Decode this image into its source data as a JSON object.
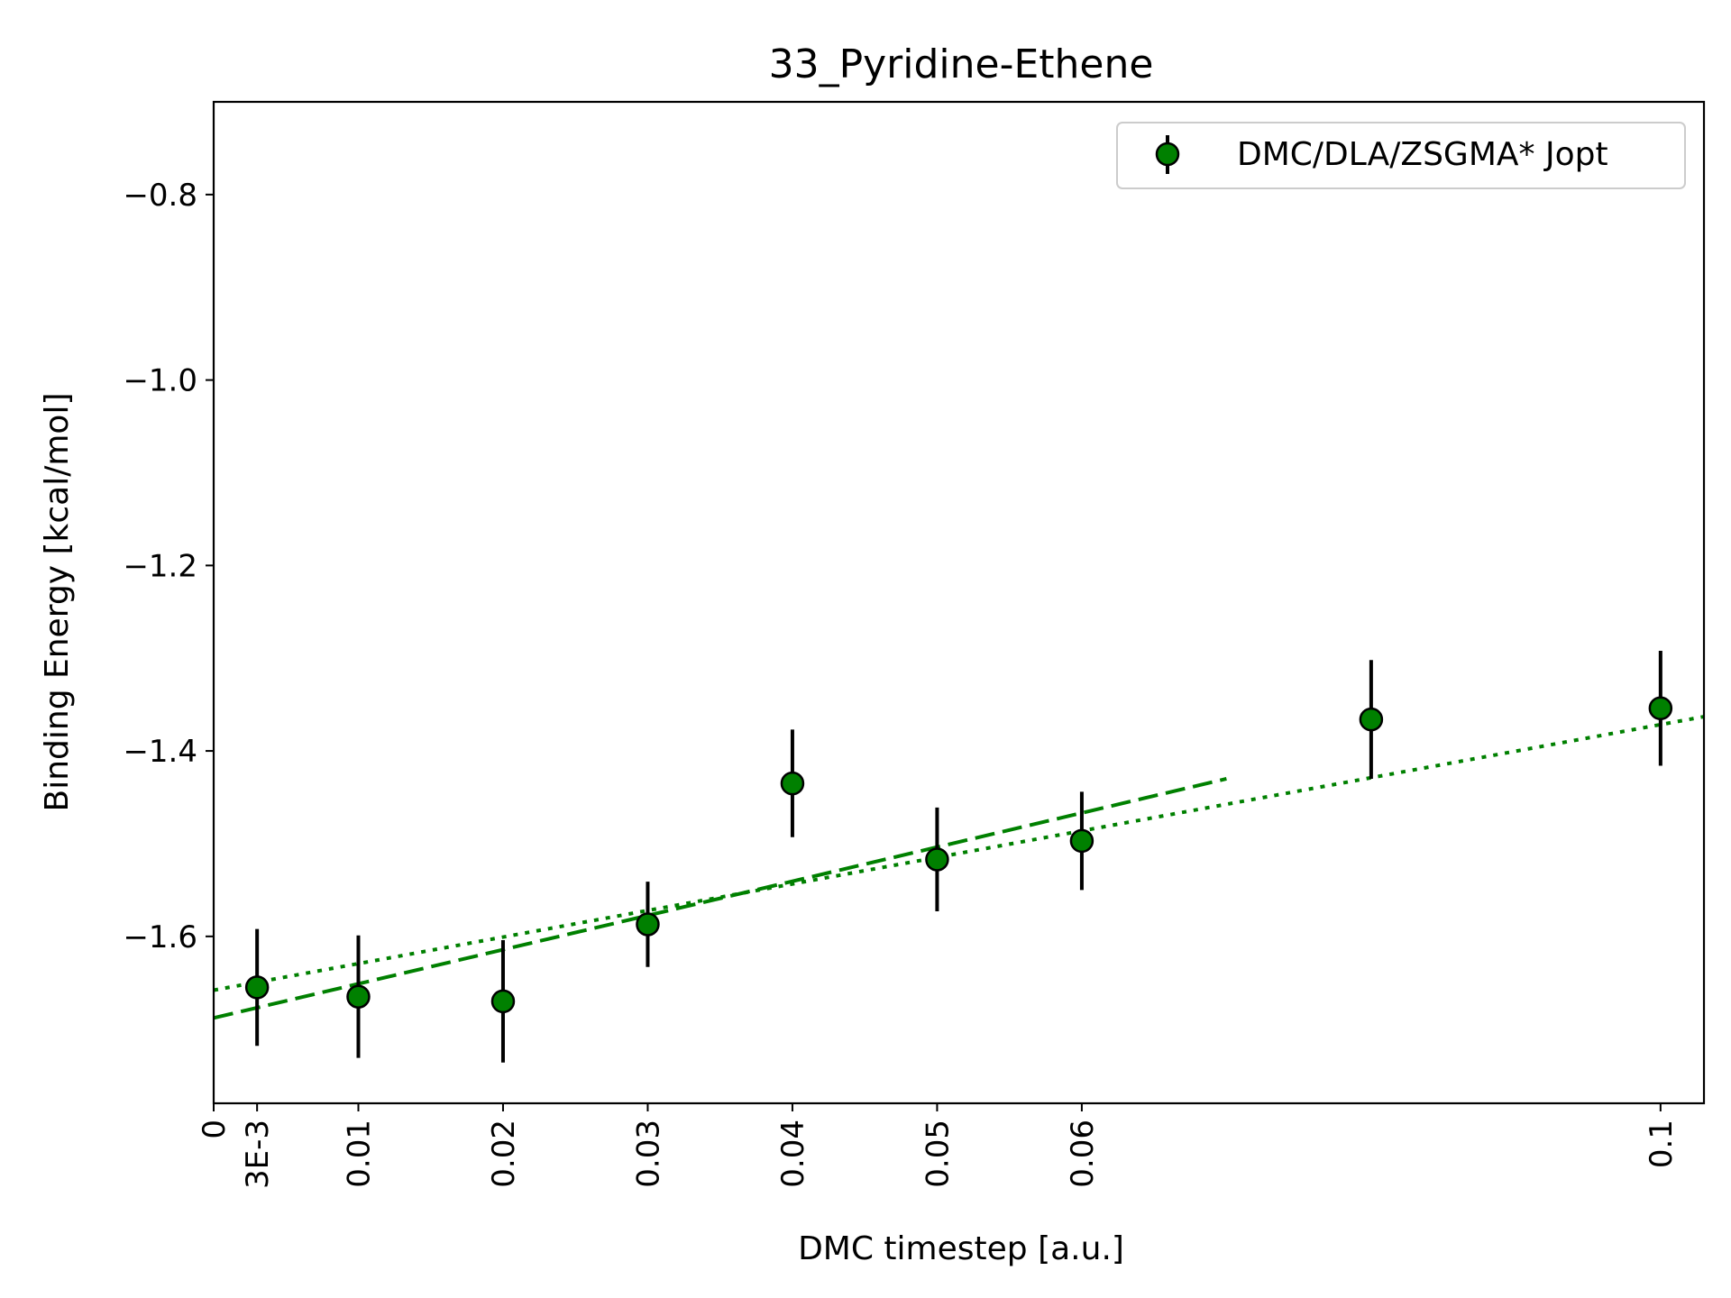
{
  "chart_data": {
    "type": "scatter",
    "title": "33_Pyridine-Ethene",
    "xlabel": "DMC timestep [a.u.]",
    "ylabel": "Binding Energy [kcal/mol]",
    "xlim": [
      0,
      0.103
    ],
    "ylim": [
      -1.78,
      -0.7
    ],
    "grid": false,
    "legend_position": "top-right",
    "x_ticks": [
      {
        "value": 0,
        "label": "0"
      },
      {
        "value": 0.003,
        "label": "3E-3"
      },
      {
        "value": 0.01,
        "label": "0.01"
      },
      {
        "value": 0.02,
        "label": "0.02"
      },
      {
        "value": 0.03,
        "label": "0.03"
      },
      {
        "value": 0.04,
        "label": "0.04"
      },
      {
        "value": 0.05,
        "label": "0.05"
      },
      {
        "value": 0.06,
        "label": "0.06"
      },
      {
        "value": 0.1,
        "label": "0.1"
      }
    ],
    "y_ticks": [
      {
        "value": -0.8,
        "label": "−0.8"
      },
      {
        "value": -1.0,
        "label": "−1.0"
      },
      {
        "value": -1.2,
        "label": "−1.2"
      },
      {
        "value": -1.4,
        "label": "−1.4"
      },
      {
        "value": -1.6,
        "label": "−1.6"
      }
    ],
    "series": [
      {
        "name": "DMC/DLA/ZSGMA* Jopt",
        "color": "#008000",
        "error_color": "#000000",
        "points": [
          {
            "x": 0.003,
            "y": -1.655,
            "err": 0.063
          },
          {
            "x": 0.01,
            "y": -1.665,
            "err": 0.066
          },
          {
            "x": 0.02,
            "y": -1.67,
            "err": 0.066
          },
          {
            "x": 0.03,
            "y": -1.587,
            "err": 0.046
          },
          {
            "x": 0.04,
            "y": -1.435,
            "err": 0.058
          },
          {
            "x": 0.05,
            "y": -1.517,
            "err": 0.056
          },
          {
            "x": 0.06,
            "y": -1.497,
            "err": 0.053
          },
          {
            "x": 0.08,
            "y": -1.366,
            "err": 0.064
          },
          {
            "x": 0.1,
            "y": -1.354,
            "err": 0.062
          }
        ]
      }
    ],
    "fit_lines": [
      {
        "style": "dashed",
        "color": "#008000",
        "x": [
          0,
          0.07
        ],
        "y": [
          -1.688,
          -1.43
        ]
      },
      {
        "style": "dotted",
        "color": "#008000",
        "x": [
          0,
          0.103
        ],
        "y": [
          -1.658,
          -1.363
        ]
      }
    ]
  }
}
